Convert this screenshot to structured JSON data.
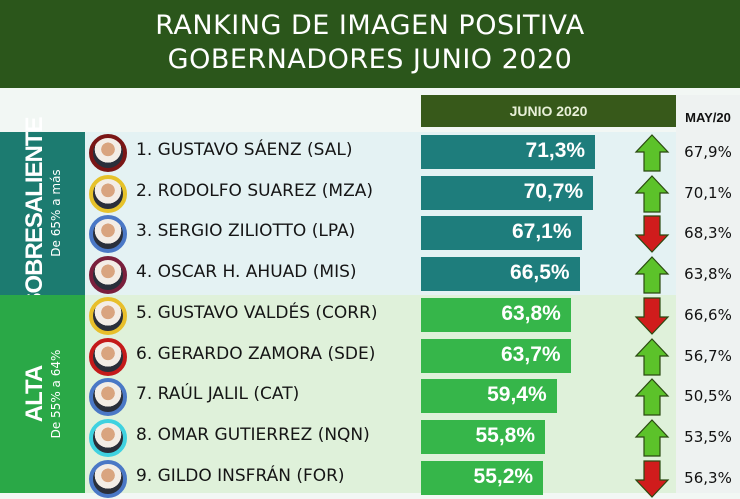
{
  "chart_data": {
    "type": "bar",
    "title": [
      "RANKING DE IMAGEN POSITIVA",
      "GOBERNADORES JUNIO 2020"
    ],
    "column_current": "JUNIO 2020",
    "column_previous": "MAY/20",
    "categories_groups": [
      {
        "label": "SOBRESALIENTE",
        "range": "De 65% a más",
        "color": "#1c7b70",
        "bg": "#e4f2f3"
      },
      {
        "label": "ALTA",
        "range": "De 55% a  64%",
        "color": "#2aa847",
        "bg": "#dff1da"
      }
    ],
    "rows": [
      {
        "name": "1. GUSTAVO SÁENZ (SAL)",
        "junio": 71.3,
        "junio_label": "71,3%",
        "mayo_label": "67,9%",
        "trend": "up",
        "group": 0,
        "ring": "#7a1616"
      },
      {
        "name": "2. RODOLFO SUAREZ (MZA)",
        "junio": 70.7,
        "junio_label": "70,7%",
        "mayo_label": "70,1%",
        "trend": "up",
        "group": 0,
        "ring": "#e6c22a"
      },
      {
        "name": "3. SERGIO ZILIOTTO (LPA)",
        "junio": 67.1,
        "junio_label": "67,1%",
        "mayo_label": "68,3%",
        "trend": "down",
        "group": 0,
        "ring": "#4a78c6"
      },
      {
        "name": "4. OSCAR H. AHUAD  (MIS)",
        "junio": 66.5,
        "junio_label": "66,5%",
        "mayo_label": "63,8%",
        "trend": "up",
        "group": 0,
        "ring": "#7a1f3c"
      },
      {
        "name": "5. GUSTAVO VALDÉS  (CORR)",
        "junio": 63.8,
        "junio_label": "63,8%",
        "mayo_label": "66,6%",
        "trend": "down",
        "group": 1,
        "ring": "#e8bf2a"
      },
      {
        "name": "6. GERARDO ZAMORA (SDE)",
        "junio": 63.7,
        "junio_label": "63,7%",
        "mayo_label": "56,7%",
        "trend": "up",
        "group": 1,
        "ring": "#c41a1a"
      },
      {
        "name": "7. RAÚL JALIL (CAT)",
        "junio": 59.4,
        "junio_label": "59,4%",
        "mayo_label": "50,5%",
        "trend": "up",
        "group": 1,
        "ring": "#4a78c6"
      },
      {
        "name": "8. OMAR GUTIERREZ (NQN)",
        "junio": 55.8,
        "junio_label": "55,8%",
        "mayo_label": "53,5%",
        "trend": "up",
        "group": 1,
        "ring": "#3fd2e0"
      },
      {
        "name": "9. GILDO INSFRÁN (FOR)",
        "junio": 55.2,
        "junio_label": "55,2%",
        "mayo_label": "56,3%",
        "trend": "down",
        "group": 1,
        "ring": "#4a78c6"
      }
    ],
    "colors": {
      "bar_sobresaliente": "#1e7d7c",
      "bar_alta": "#36b64a",
      "up": "#5cc22a",
      "down": "#d01c1c",
      "header": "#2b561b"
    }
  }
}
